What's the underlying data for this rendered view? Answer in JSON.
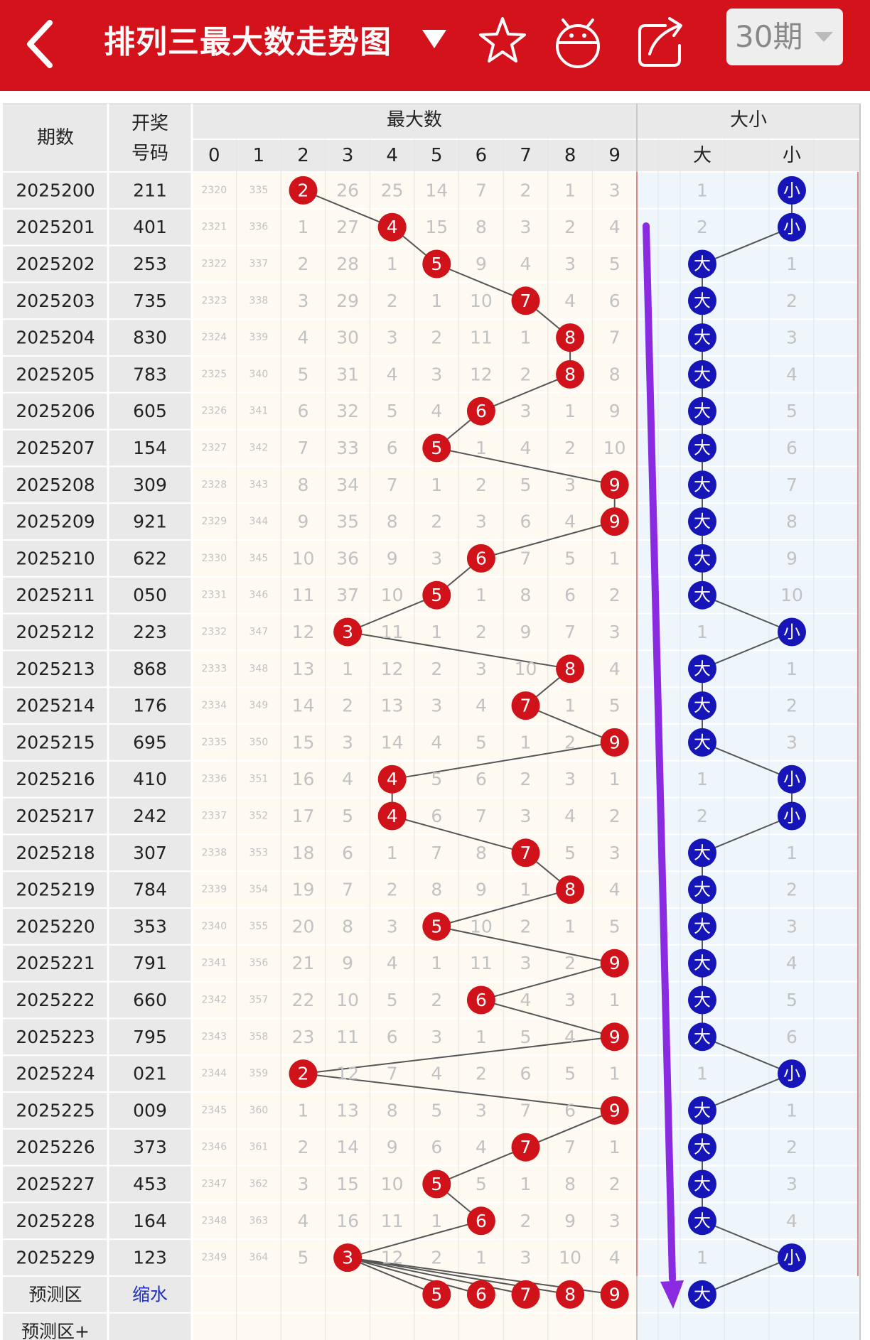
{
  "header": {
    "title": "排列三最大数走势图",
    "period_label": "30期"
  },
  "columns": {
    "issue": "期数",
    "draw_line1": "开奖",
    "draw_line2": "号码",
    "max_group": "最大数",
    "size_group": "大小",
    "digits": [
      "0",
      "1",
      "2",
      "3",
      "4",
      "5",
      "6",
      "7",
      "8",
      "9"
    ],
    "big": "大",
    "small": "小"
  },
  "rows": [
    {
      "issue": "2025200",
      "draw": "211",
      "max": 2,
      "cells": [
        "2320",
        "335",
        "2",
        "26",
        "25",
        "14",
        "7",
        "2",
        "1",
        "3"
      ],
      "size": "小",
      "big_miss": "1",
      "small_miss": "小"
    },
    {
      "issue": "2025201",
      "draw": "401",
      "max": 4,
      "cells": [
        "2321",
        "336",
        "1",
        "27",
        "4",
        "15",
        "8",
        "3",
        "2",
        "4"
      ],
      "size": "小",
      "big_miss": "2",
      "small_miss": "小"
    },
    {
      "issue": "2025202",
      "draw": "253",
      "max": 5,
      "cells": [
        "2322",
        "337",
        "2",
        "28",
        "1",
        "5",
        "9",
        "4",
        "3",
        "5"
      ],
      "size": "大",
      "big_miss": "大",
      "small_miss": "1"
    },
    {
      "issue": "2025203",
      "draw": "735",
      "max": 7,
      "cells": [
        "2323",
        "338",
        "3",
        "29",
        "2",
        "1",
        "10",
        "7",
        "4",
        "6"
      ],
      "size": "大",
      "big_miss": "大",
      "small_miss": "2"
    },
    {
      "issue": "2025204",
      "draw": "830",
      "max": 8,
      "cells": [
        "2324",
        "339",
        "4",
        "30",
        "3",
        "2",
        "11",
        "1",
        "8",
        "7"
      ],
      "size": "大",
      "big_miss": "大",
      "small_miss": "3"
    },
    {
      "issue": "2025205",
      "draw": "783",
      "max": 8,
      "cells": [
        "2325",
        "340",
        "5",
        "31",
        "4",
        "3",
        "12",
        "2",
        "8",
        "8"
      ],
      "size": "大",
      "big_miss": "大",
      "small_miss": "4"
    },
    {
      "issue": "2025206",
      "draw": "605",
      "max": 6,
      "cells": [
        "2326",
        "341",
        "6",
        "32",
        "5",
        "4",
        "6",
        "3",
        "1",
        "9"
      ],
      "size": "大",
      "big_miss": "大",
      "small_miss": "5"
    },
    {
      "issue": "2025207",
      "draw": "154",
      "max": 5,
      "cells": [
        "2327",
        "342",
        "7",
        "33",
        "6",
        "5",
        "1",
        "4",
        "2",
        "10"
      ],
      "size": "大",
      "big_miss": "大",
      "small_miss": "6"
    },
    {
      "issue": "2025208",
      "draw": "309",
      "max": 9,
      "cells": [
        "2328",
        "343",
        "8",
        "34",
        "7",
        "1",
        "2",
        "5",
        "3",
        "9"
      ],
      "size": "大",
      "big_miss": "大",
      "small_miss": "7"
    },
    {
      "issue": "2025209",
      "draw": "921",
      "max": 9,
      "cells": [
        "2329",
        "344",
        "9",
        "35",
        "8",
        "2",
        "3",
        "6",
        "4",
        "9"
      ],
      "size": "大",
      "big_miss": "大",
      "small_miss": "8"
    },
    {
      "issue": "2025210",
      "draw": "622",
      "max": 6,
      "cells": [
        "2330",
        "345",
        "10",
        "36",
        "9",
        "3",
        "6",
        "7",
        "5",
        "1"
      ],
      "size": "大",
      "big_miss": "大",
      "small_miss": "9"
    },
    {
      "issue": "2025211",
      "draw": "050",
      "max": 5,
      "cells": [
        "2331",
        "346",
        "11",
        "37",
        "10",
        "5",
        "1",
        "8",
        "6",
        "2"
      ],
      "size": "大",
      "big_miss": "大",
      "small_miss": "10"
    },
    {
      "issue": "2025212",
      "draw": "223",
      "max": 3,
      "cells": [
        "2332",
        "347",
        "12",
        "3",
        "11",
        "1",
        "2",
        "9",
        "7",
        "3"
      ],
      "size": "小",
      "big_miss": "1",
      "small_miss": "小"
    },
    {
      "issue": "2025213",
      "draw": "868",
      "max": 8,
      "cells": [
        "2333",
        "348",
        "13",
        "1",
        "12",
        "2",
        "3",
        "10",
        "8",
        "4"
      ],
      "size": "大",
      "big_miss": "大",
      "small_miss": "1"
    },
    {
      "issue": "2025214",
      "draw": "176",
      "max": 7,
      "cells": [
        "2334",
        "349",
        "14",
        "2",
        "13",
        "3",
        "4",
        "7",
        "1",
        "5"
      ],
      "size": "大",
      "big_miss": "大",
      "small_miss": "2"
    },
    {
      "issue": "2025215",
      "draw": "695",
      "max": 9,
      "cells": [
        "2335",
        "350",
        "15",
        "3",
        "14",
        "4",
        "5",
        "1",
        "2",
        "9"
      ],
      "size": "大",
      "big_miss": "大",
      "small_miss": "3"
    },
    {
      "issue": "2025216",
      "draw": "410",
      "max": 4,
      "cells": [
        "2336",
        "351",
        "16",
        "4",
        "4",
        "5",
        "6",
        "2",
        "3",
        "1"
      ],
      "size": "小",
      "big_miss": "1",
      "small_miss": "小"
    },
    {
      "issue": "2025217",
      "draw": "242",
      "max": 4,
      "cells": [
        "2337",
        "352",
        "17",
        "5",
        "4",
        "6",
        "7",
        "3",
        "4",
        "2"
      ],
      "size": "小",
      "big_miss": "2",
      "small_miss": "小"
    },
    {
      "issue": "2025218",
      "draw": "307",
      "max": 7,
      "cells": [
        "2338",
        "353",
        "18",
        "6",
        "1",
        "7",
        "8",
        "7",
        "5",
        "3"
      ],
      "size": "大",
      "big_miss": "大",
      "small_miss": "1"
    },
    {
      "issue": "2025219",
      "draw": "784",
      "max": 8,
      "cells": [
        "2339",
        "354",
        "19",
        "7",
        "2",
        "8",
        "9",
        "1",
        "8",
        "4"
      ],
      "size": "大",
      "big_miss": "大",
      "small_miss": "2"
    },
    {
      "issue": "2025220",
      "draw": "353",
      "max": 5,
      "cells": [
        "2340",
        "355",
        "20",
        "8",
        "3",
        "5",
        "10",
        "2",
        "1",
        "5"
      ],
      "size": "大",
      "big_miss": "大",
      "small_miss": "3"
    },
    {
      "issue": "2025221",
      "draw": "791",
      "max": 9,
      "cells": [
        "2341",
        "356",
        "21",
        "9",
        "4",
        "1",
        "11",
        "3",
        "2",
        "9"
      ],
      "size": "大",
      "big_miss": "大",
      "small_miss": "4"
    },
    {
      "issue": "2025222",
      "draw": "660",
      "max": 6,
      "cells": [
        "2342",
        "357",
        "22",
        "10",
        "5",
        "2",
        "6",
        "4",
        "3",
        "1"
      ],
      "size": "大",
      "big_miss": "大",
      "small_miss": "5"
    },
    {
      "issue": "2025223",
      "draw": "795",
      "max": 9,
      "cells": [
        "2343",
        "358",
        "23",
        "11",
        "6",
        "3",
        "1",
        "5",
        "4",
        "9"
      ],
      "size": "大",
      "big_miss": "大",
      "small_miss": "6"
    },
    {
      "issue": "2025224",
      "draw": "021",
      "max": 2,
      "cells": [
        "2344",
        "359",
        "2",
        "12",
        "7",
        "4",
        "2",
        "6",
        "5",
        "1"
      ],
      "size": "小",
      "big_miss": "1",
      "small_miss": "小"
    },
    {
      "issue": "2025225",
      "draw": "009",
      "max": 9,
      "cells": [
        "2345",
        "360",
        "1",
        "13",
        "8",
        "5",
        "3",
        "7",
        "6",
        "9"
      ],
      "size": "大",
      "big_miss": "大",
      "small_miss": "1"
    },
    {
      "issue": "2025226",
      "draw": "373",
      "max": 7,
      "cells": [
        "2346",
        "361",
        "2",
        "14",
        "9",
        "6",
        "4",
        "7",
        "7",
        "1"
      ],
      "size": "大",
      "big_miss": "大",
      "small_miss": "2"
    },
    {
      "issue": "2025227",
      "draw": "453",
      "max": 5,
      "cells": [
        "2347",
        "362",
        "3",
        "15",
        "10",
        "5",
        "5",
        "1",
        "8",
        "2"
      ],
      "size": "大",
      "big_miss": "大",
      "small_miss": "3"
    },
    {
      "issue": "2025228",
      "draw": "164",
      "max": 6,
      "cells": [
        "2348",
        "363",
        "4",
        "16",
        "11",
        "1",
        "6",
        "2",
        "9",
        "3"
      ],
      "size": "大",
      "big_miss": "大",
      "small_miss": "4"
    },
    {
      "issue": "2025229",
      "draw": "123",
      "max": 3,
      "cells": [
        "2349",
        "364",
        "5",
        "3",
        "12",
        "2",
        "1",
        "3",
        "10",
        "4"
      ],
      "size": "小",
      "big_miss": "1",
      "small_miss": "小"
    }
  ],
  "prediction": {
    "label": "预测区",
    "hint": "缩水",
    "digits": [
      "5",
      "6",
      "7",
      "8",
      "9"
    ],
    "size": "大"
  },
  "prediction_plus": {
    "label": "预测区+"
  },
  "colors": {
    "header_red": "#d3121b",
    "ball_red": "#d0121b",
    "ball_blue": "#1515b8",
    "arrow_purple": "#8a2be2",
    "line_gray": "#555555",
    "header_cell_bg": "#e9e9e9",
    "body_bg": "#fefaf1",
    "size_body_bg": "#eef6fb",
    "miss_text": "#c2c2c2"
  },
  "icons": {
    "back": "back-arrow-icon",
    "title_toggle": "caret-down-icon",
    "favorite": "star-icon",
    "robot": "robot-icon",
    "share": "share-icon",
    "period_dropdown": "dropdown-caret-icon"
  }
}
